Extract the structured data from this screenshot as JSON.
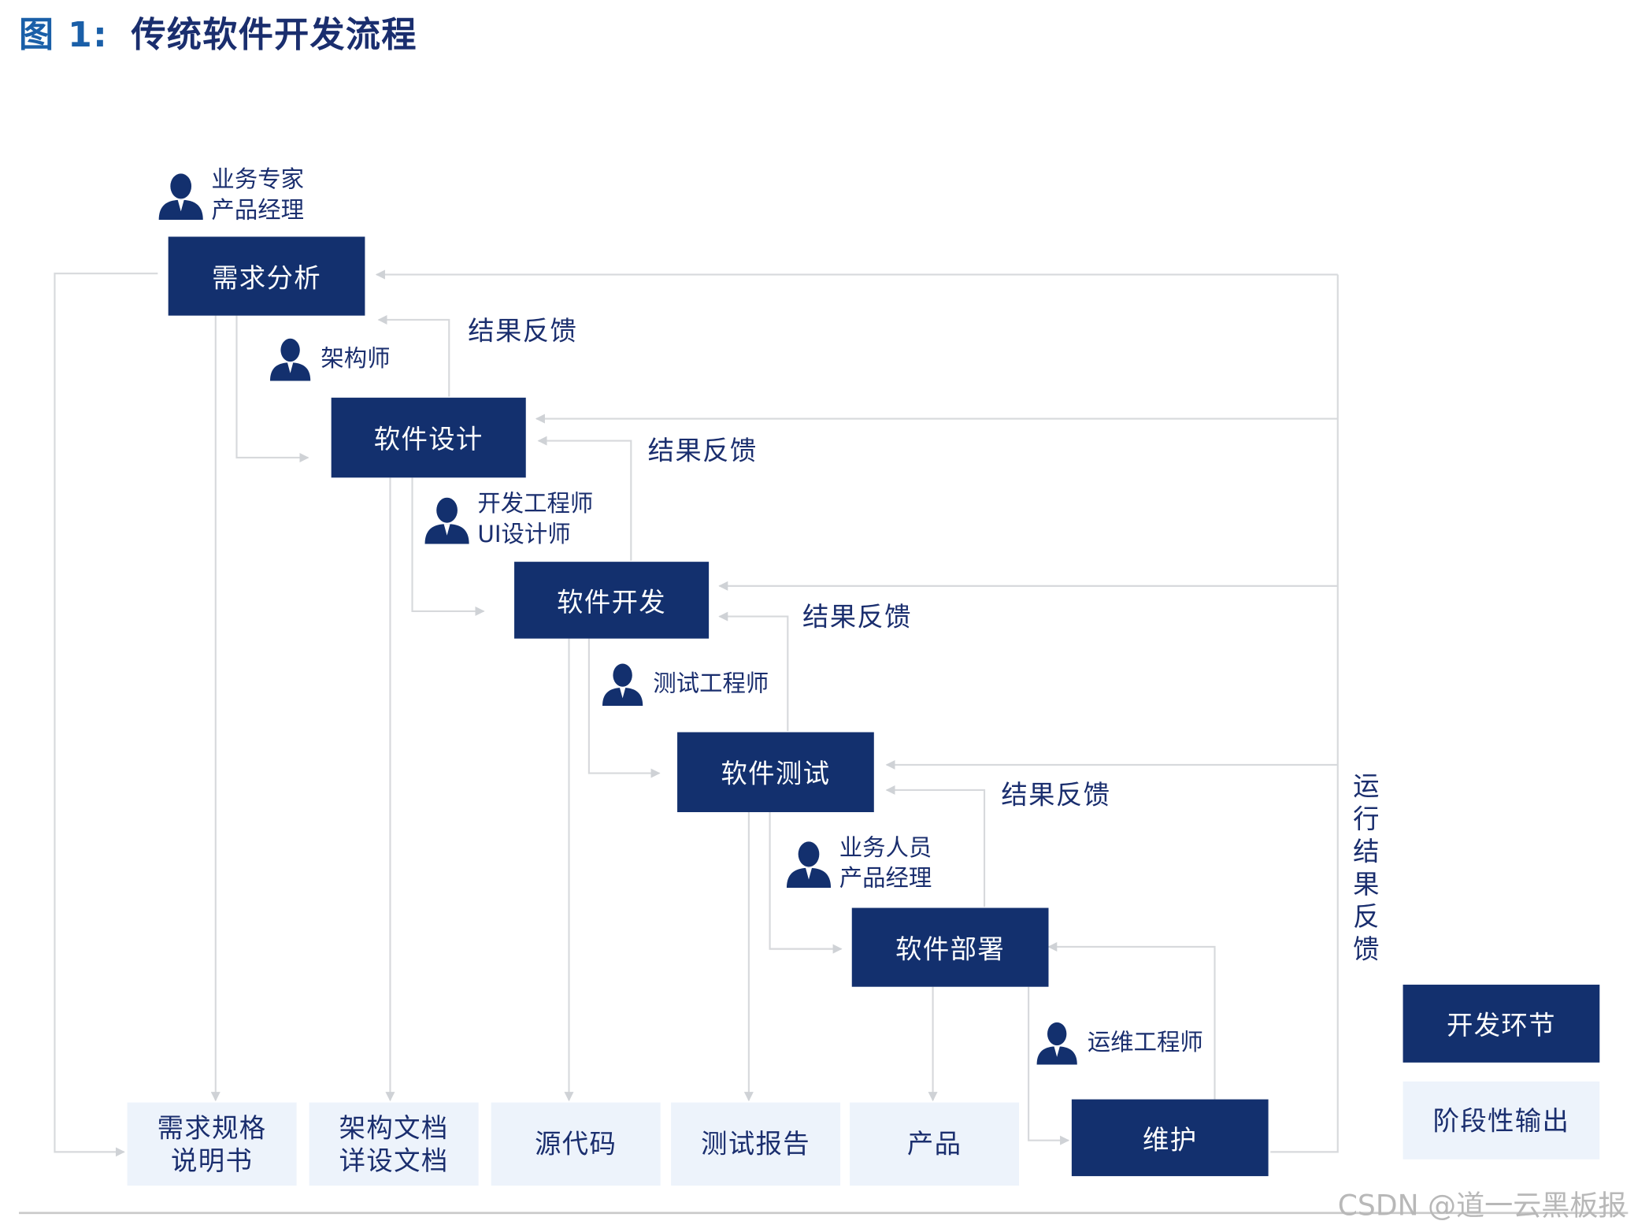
{
  "figure": {
    "number": "图 1:",
    "title": "传统软件开发流程"
  },
  "stages": [
    {
      "id": "req",
      "label": "需求分析"
    },
    {
      "id": "design",
      "label": "软件设计"
    },
    {
      "id": "dev",
      "label": "软件开发"
    },
    {
      "id": "test",
      "label": "软件测试"
    },
    {
      "id": "deploy",
      "label": "软件部署"
    },
    {
      "id": "maint",
      "label": "维护"
    }
  ],
  "roles": [
    {
      "id": "req",
      "lines": [
        "业务专家",
        "产品经理"
      ]
    },
    {
      "id": "design",
      "lines": [
        "架构师"
      ]
    },
    {
      "id": "dev",
      "lines": [
        "开发工程师",
        "UI设计师"
      ]
    },
    {
      "id": "test",
      "lines": [
        "测试工程师"
      ]
    },
    {
      "id": "deploy",
      "lines": [
        "业务人员",
        "产品经理"
      ]
    },
    {
      "id": "maint",
      "lines": [
        "运维工程师"
      ]
    }
  ],
  "feedback_label": "结果反馈",
  "runtime_feedback_label": "运行结果反馈",
  "outputs": [
    {
      "id": "spec",
      "lines": [
        "需求规格",
        "说明书"
      ]
    },
    {
      "id": "arch",
      "lines": [
        "架构文档",
        "详设文档"
      ]
    },
    {
      "id": "code",
      "lines": [
        "源代码"
      ]
    },
    {
      "id": "report",
      "lines": [
        "测试报告"
      ]
    },
    {
      "id": "product",
      "lines": [
        "产品"
      ]
    }
  ],
  "legend": {
    "dev_stage": "开发环节",
    "stage_output": "阶段性输出"
  },
  "watermark": "CSDN @道一云黑板报",
  "colors": {
    "stage_fill": "#13306e",
    "output_fill": "#edf3fb",
    "text_navy": "#1a2e6e",
    "title_blue": "#1a5fa8",
    "connector": "#cfd2d6"
  }
}
